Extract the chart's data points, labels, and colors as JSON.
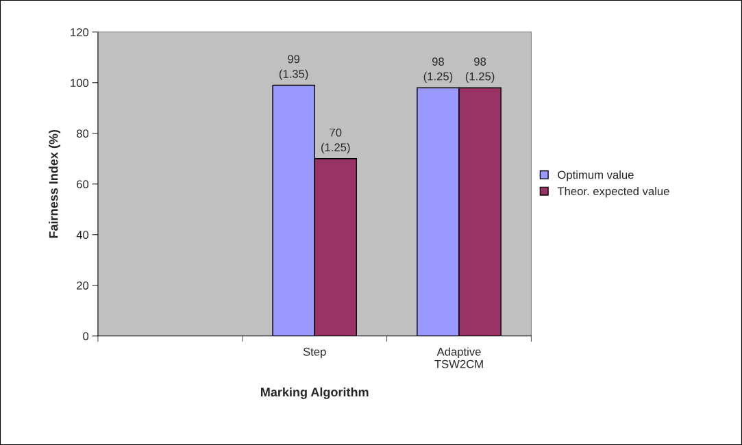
{
  "chart_data": {
    "type": "bar",
    "xlabel": "Marking Algorithm",
    "ylabel": "Fairness Index (%)",
    "categories": [
      null,
      "Step",
      "Adaptive\nTSW2CM"
    ],
    "series": [
      {
        "name": "Optimum value",
        "color": "#9999ff",
        "values": [
          null,
          99,
          98
        ],
        "value_labels": [
          null,
          "99\n(1.35)",
          "98\n(1.25)"
        ]
      },
      {
        "name": "Theor. expected value",
        "color": "#993366",
        "values": [
          null,
          70,
          98
        ],
        "value_labels": [
          null,
          "70\n(1.25)",
          "98\n(1.25)"
        ]
      }
    ],
    "ylim": [
      0,
      120
    ],
    "yticks": [
      0,
      20,
      40,
      60,
      80,
      100,
      120
    ],
    "grid": false,
    "legend": "right"
  }
}
